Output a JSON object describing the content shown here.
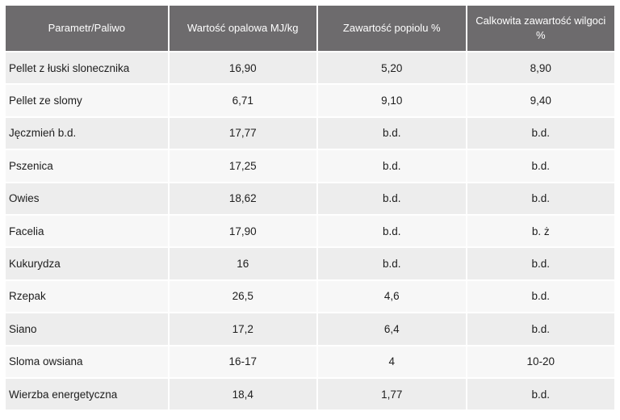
{
  "table": {
    "headers": [
      "Parametr/Paliwo",
      "Wartość opalowa MJ/kg",
      "Zawartość popiolu %",
      "Calkowita zawartość wilgoci %"
    ],
    "rows": [
      [
        "Pellet z łuski slonecznika",
        "16,90",
        "5,20",
        "8,90"
      ],
      [
        "Pellet ze slomy",
        "6,71",
        "9,10",
        "9,40"
      ],
      [
        "Jęczmień  b.d.",
        "17,77",
        "b.d.",
        "b.d."
      ],
      [
        "Pszenica",
        "17,25",
        "b.d.",
        "b.d."
      ],
      [
        "Owies",
        "18,62",
        "b.d.",
        "b.d."
      ],
      [
        "Facelia",
        "17,90",
        "b.d.",
        "b. ż"
      ],
      [
        "Kukurydza",
        "16",
        "b.d.",
        "b.d."
      ],
      [
        "Rzepak",
        "26,5",
        "4,6",
        "b.d."
      ],
      [
        "Siano",
        "17,2",
        "6,4",
        "b.d."
      ],
      [
        "Sloma owsiana",
        "16-17",
        "4",
        "10-20"
      ],
      [
        "Wierzba energetyczna",
        "18,4",
        "1,77",
        "b.d."
      ]
    ]
  }
}
